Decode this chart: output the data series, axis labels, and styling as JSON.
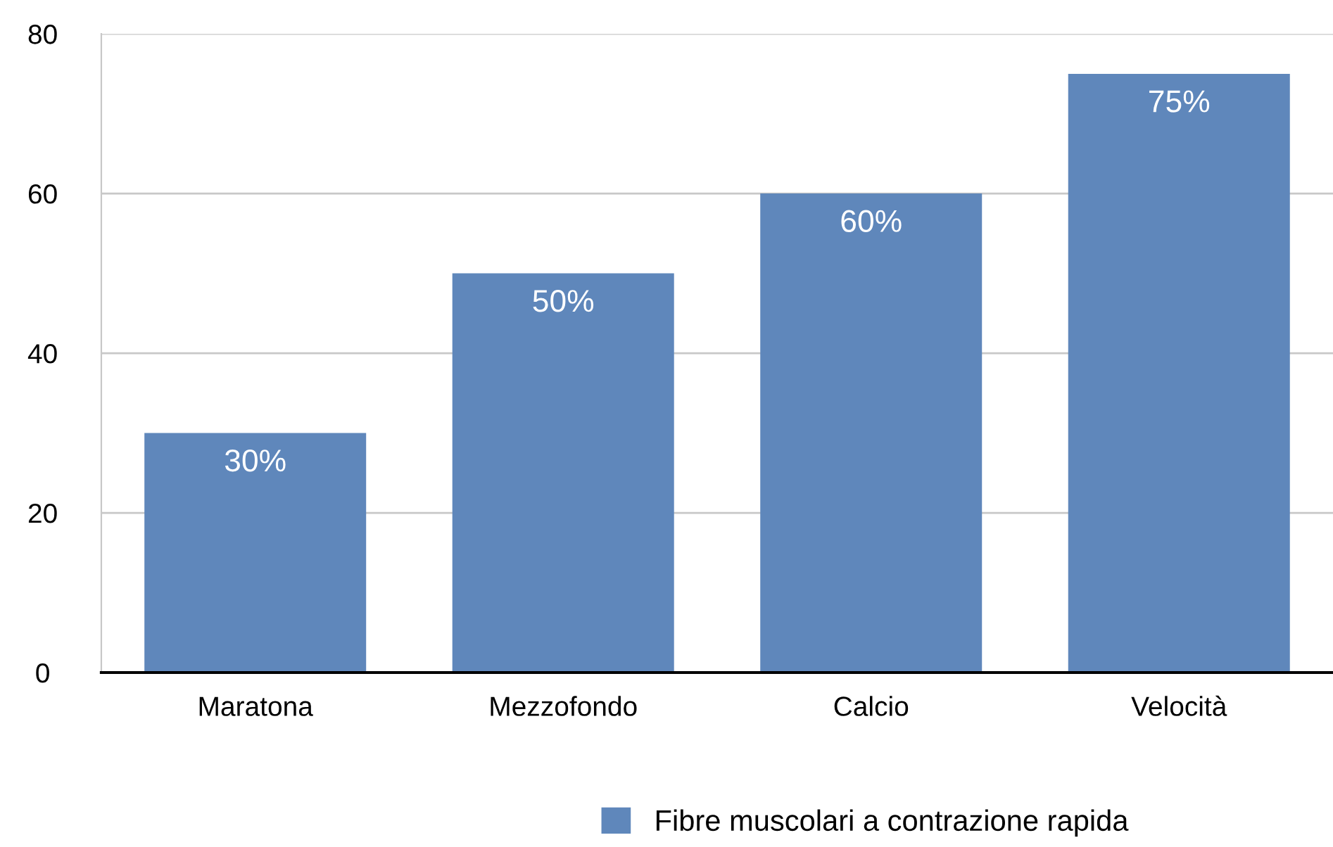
{
  "chart_data": {
    "type": "bar",
    "categories": [
      "Maratona",
      "Mezzofondo",
      "Calcio",
      "Velocità"
    ],
    "series": [
      {
        "name": "Fibre muscolari a contrazione rapida",
        "color": "#5f87bb",
        "values": [
          30,
          50,
          60,
          75
        ],
        "value_labels": [
          "30%",
          "50%",
          "60%",
          "75%"
        ]
      }
    ],
    "ylim": [
      0,
      80
    ],
    "yticks": [
      0,
      20,
      40,
      60,
      80
    ],
    "grid": "y",
    "legend": "bottom"
  }
}
